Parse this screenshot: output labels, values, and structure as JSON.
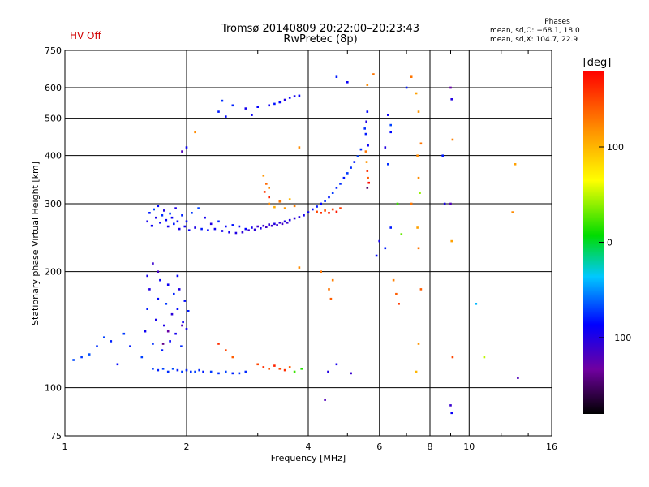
{
  "header": {
    "status": "HV Off",
    "title": "Tromsø 20140809 20:22:00–20:23:43",
    "subtitle": "RwPretec (8p)",
    "stats_title": "Phases",
    "stats_o": "mean, sd,O: −68.1, 18.0",
    "stats_x": "mean, sd,X: 104.7, 22.9"
  },
  "colors": {
    "status": "#d00000",
    "grid": "#000000",
    "background": "#ffffff"
  },
  "chart_data": {
    "type": "scatter",
    "xlabel": "Frequency [MHz]",
    "ylabel": "Stationary phase Virtual Height [km]",
    "x_scale": "log",
    "y_scale": "log",
    "xlim": [
      1,
      16
    ],
    "ylim": [
      75,
      750
    ],
    "x_ticks": [
      1,
      2,
      4,
      6,
      8,
      10,
      16
    ],
    "y_ticks": [
      75,
      100,
      200,
      300,
      400,
      500,
      600,
      750
    ],
    "grid": true,
    "colorbar": {
      "label": "[deg]",
      "ticks": [
        100,
        0,
        -100
      ],
      "range": [
        -180,
        180
      ],
      "colormap": "rainbow"
    },
    "points": [
      [
        1.6,
        270,
        -95
      ],
      [
        1.62,
        284,
        -80
      ],
      [
        1.64,
        263,
        -92
      ],
      [
        1.66,
        290,
        -70
      ],
      [
        1.68,
        276,
        -98
      ],
      [
        1.7,
        296,
        -85
      ],
      [
        1.72,
        268,
        -90
      ],
      [
        1.74,
        280,
        -75
      ],
      [
        1.76,
        288,
        -100
      ],
      [
        1.78,
        272,
        -88
      ],
      [
        1.8,
        262,
        -95
      ],
      [
        1.82,
        283,
        -70
      ],
      [
        1.84,
        276,
        -92
      ],
      [
        1.86,
        266,
        -80
      ],
      [
        1.88,
        292,
        -99
      ],
      [
        1.9,
        270,
        -86
      ],
      [
        1.92,
        258,
        -96
      ],
      [
        1.95,
        280,
        -78
      ],
      [
        1.98,
        262,
        -92
      ],
      [
        2.0,
        270,
        -85
      ],
      [
        2.03,
        256,
        -90
      ],
      [
        2.06,
        284,
        -72
      ],
      [
        2.1,
        260,
        -98
      ],
      [
        2.14,
        292,
        -70
      ],
      [
        2.18,
        258,
        -80
      ],
      [
        2.22,
        276,
        -95
      ],
      [
        2.26,
        256,
        -86
      ],
      [
        2.3,
        266,
        -100
      ],
      [
        2.35,
        258,
        -92
      ],
      [
        2.4,
        270,
        -78
      ],
      [
        2.45,
        255,
        -95
      ],
      [
        2.5,
        262,
        -88
      ],
      [
        2.55,
        253,
        -96
      ],
      [
        2.6,
        264,
        -82
      ],
      [
        2.65,
        252,
        -100
      ],
      [
        2.7,
        262,
        -90
      ],
      [
        2.75,
        253,
        -105
      ],
      [
        2.8,
        258,
        -86
      ],
      [
        2.85,
        256,
        -110
      ],
      [
        2.9,
        260,
        -95
      ],
      [
        2.95,
        257,
        -104
      ],
      [
        3.0,
        262,
        -112
      ],
      [
        3.05,
        259,
        -98
      ],
      [
        3.1,
        263,
        -108
      ],
      [
        3.15,
        261,
        -115
      ],
      [
        3.2,
        265,
        -104
      ],
      [
        3.25,
        263,
        -112
      ],
      [
        3.3,
        266,
        -100
      ],
      [
        3.35,
        264,
        -110
      ],
      [
        3.4,
        268,
        -106
      ],
      [
        3.45,
        266,
        -114
      ],
      [
        3.5,
        270,
        -100
      ],
      [
        3.55,
        268,
        -110
      ],
      [
        3.6,
        272,
        -98
      ],
      [
        3.7,
        275,
        -106
      ],
      [
        3.8,
        277,
        -100
      ],
      [
        3.9,
        280,
        -95
      ],
      [
        4.0,
        285,
        -90
      ],
      [
        4.1,
        290,
        -86
      ],
      [
        4.2,
        295,
        -80
      ],
      [
        4.3,
        300,
        -85
      ],
      [
        4.4,
        305,
        -76
      ],
      [
        4.5,
        312,
        -80
      ],
      [
        4.6,
        320,
        -72
      ],
      [
        4.7,
        330,
        -78
      ],
      [
        4.8,
        338,
        -75
      ],
      [
        4.9,
        350,
        -80
      ],
      [
        5.0,
        360,
        -72
      ],
      [
        5.1,
        372,
        -75
      ],
      [
        5.2,
        385,
        -80
      ],
      [
        5.3,
        398,
        -70
      ],
      [
        5.4,
        415,
        -76
      ],
      [
        3.2,
        300,
        120
      ],
      [
        3.3,
        294,
        105
      ],
      [
        3.4,
        304,
        130
      ],
      [
        3.5,
        292,
        115
      ],
      [
        3.6,
        308,
        100
      ],
      [
        3.7,
        296,
        125
      ],
      [
        4.2,
        286,
        150
      ],
      [
        4.3,
        284,
        160
      ],
      [
        4.4,
        288,
        145
      ],
      [
        4.5,
        284,
        165
      ],
      [
        4.6,
        290,
        150
      ],
      [
        4.7,
        286,
        170
      ],
      [
        4.8,
        292,
        155
      ],
      [
        3.1,
        355,
        115
      ],
      [
        3.15,
        338,
        135
      ],
      [
        3.2,
        330,
        120
      ],
      [
        3.12,
        322,
        155
      ],
      [
        3.2,
        312,
        165
      ],
      [
        5.55,
        410,
        130
      ],
      [
        5.58,
        385,
        115
      ],
      [
        5.6,
        365,
        160
      ],
      [
        5.62,
        350,
        140
      ],
      [
        5.65,
        340,
        175
      ],
      [
        5.6,
        330,
        -150
      ],
      [
        5.62,
        425,
        -90
      ],
      [
        5.55,
        455,
        -80
      ],
      [
        5.57,
        490,
        -100
      ],
      [
        5.6,
        520,
        -85
      ],
      [
        5.52,
        470,
        -75
      ],
      [
        2.4,
        520,
        -80
      ],
      [
        2.5,
        505,
        -85
      ],
      [
        2.6,
        540,
        -78
      ],
      [
        2.8,
        530,
        -95
      ],
      [
        3.0,
        535,
        -88
      ],
      [
        3.2,
        540,
        -92
      ],
      [
        3.4,
        550,
        -86
      ],
      [
        3.5,
        558,
        -100
      ],
      [
        3.6,
        565,
        -90
      ],
      [
        3.7,
        570,
        -95
      ],
      [
        3.8,
        572,
        -88
      ],
      [
        2.45,
        555,
        -75
      ],
      [
        2.9,
        510,
        -90
      ],
      [
        3.3,
        545,
        -82
      ],
      [
        1.55,
        120,
        -70
      ],
      [
        1.58,
        140,
        -92
      ],
      [
        1.6,
        160,
        -80
      ],
      [
        1.62,
        180,
        -100
      ],
      [
        1.65,
        130,
        -75
      ],
      [
        1.68,
        150,
        -95
      ],
      [
        1.7,
        170,
        -85
      ],
      [
        1.72,
        190,
        -90
      ],
      [
        1.74,
        125,
        -80
      ],
      [
        1.76,
        145,
        -98
      ],
      [
        1.78,
        165,
        -72
      ],
      [
        1.8,
        185,
        -92
      ],
      [
        1.82,
        132,
        -88
      ],
      [
        1.84,
        155,
        -104
      ],
      [
        1.86,
        175,
        -78
      ],
      [
        1.88,
        138,
        -95
      ],
      [
        1.9,
        160,
        -85
      ],
      [
        1.92,
        180,
        -100
      ],
      [
        1.94,
        128,
        -76
      ],
      [
        1.96,
        148,
        -92
      ],
      [
        1.98,
        168,
        -84
      ],
      [
        2.0,
        142,
        -96
      ],
      [
        2.02,
        158,
        -80
      ],
      [
        1.65,
        210,
        -110
      ],
      [
        1.7,
        200,
        -115
      ],
      [
        1.75,
        130,
        -140
      ],
      [
        1.8,
        140,
        -130
      ],
      [
        1.6,
        195,
        -95
      ],
      [
        1.9,
        195,
        -88
      ],
      [
        1.95,
        145,
        -120
      ],
      [
        1.05,
        118,
        -68
      ],
      [
        1.1,
        120,
        -72
      ],
      [
        1.15,
        122,
        -66
      ],
      [
        1.2,
        128,
        -75
      ],
      [
        1.25,
        135,
        -70
      ],
      [
        1.3,
        132,
        -78
      ],
      [
        1.4,
        138,
        -72
      ],
      [
        1.45,
        128,
        -80
      ],
      [
        1.35,
        115,
        -85
      ],
      [
        1.65,
        112,
        -72
      ],
      [
        1.7,
        111,
        -78
      ],
      [
        1.75,
        112,
        -70
      ],
      [
        1.8,
        110,
        -75
      ],
      [
        1.85,
        112,
        -68
      ],
      [
        1.9,
        111,
        -80
      ],
      [
        1.95,
        110,
        -72
      ],
      [
        2.0,
        111,
        -78
      ],
      [
        2.05,
        110,
        -74
      ],
      [
        2.1,
        110,
        -70
      ],
      [
        2.15,
        111,
        -76
      ],
      [
        2.2,
        110,
        -80
      ],
      [
        2.3,
        110,
        -72
      ],
      [
        2.4,
        109,
        -75
      ],
      [
        2.5,
        110,
        -70
      ],
      [
        2.6,
        109,
        -78
      ],
      [
        2.7,
        109,
        -74
      ],
      [
        2.8,
        110,
        -76
      ],
      [
        2.4,
        130,
        160
      ],
      [
        2.5,
        125,
        150
      ],
      [
        2.6,
        120,
        140
      ],
      [
        3.0,
        115,
        150
      ],
      [
        3.1,
        113,
        160
      ],
      [
        3.2,
        112,
        145
      ],
      [
        3.3,
        114,
        165
      ],
      [
        3.4,
        112,
        150
      ],
      [
        3.5,
        111,
        160
      ],
      [
        3.6,
        113,
        140
      ],
      [
        3.7,
        110,
        20
      ],
      [
        3.85,
        112,
        15
      ],
      [
        4.5,
        180,
        130
      ],
      [
        4.55,
        170,
        140
      ],
      [
        4.6,
        190,
        125
      ],
      [
        4.48,
        110,
        -100
      ],
      [
        4.7,
        115,
        -95
      ],
      [
        5.1,
        109,
        -110
      ],
      [
        4.4,
        93,
        -120
      ],
      [
        4.3,
        200,
        130
      ],
      [
        6.5,
        190,
        125
      ],
      [
        6.6,
        175,
        140
      ],
      [
        6.7,
        165,
        155
      ],
      [
        6.8,
        250,
        30
      ],
      [
        6.65,
        300,
        20
      ],
      [
        7.0,
        600,
        -80
      ],
      [
        7.2,
        640,
        130
      ],
      [
        7.4,
        580,
        110
      ],
      [
        7.5,
        520,
        115
      ],
      [
        7.6,
        430,
        130
      ],
      [
        7.5,
        350,
        120
      ],
      [
        7.45,
        260,
        110
      ],
      [
        7.5,
        230,
        130
      ],
      [
        7.6,
        180,
        140
      ],
      [
        7.5,
        130,
        115
      ],
      [
        7.4,
        110,
        100
      ],
      [
        7.55,
        320,
        40
      ],
      [
        7.45,
        400,
        120
      ],
      [
        7.2,
        300,
        130
      ],
      [
        9.0,
        600,
        -130
      ],
      [
        9.05,
        560,
        -100
      ],
      [
        9.1,
        440,
        125
      ],
      [
        9.0,
        300,
        -120
      ],
      [
        9.05,
        240,
        110
      ],
      [
        9.1,
        120,
        150
      ],
      [
        9.0,
        90,
        -110
      ],
      [
        9.05,
        86,
        -90
      ],
      [
        8.6,
        400,
        -80
      ],
      [
        8.7,
        300,
        -95
      ],
      [
        6.3,
        510,
        -90
      ],
      [
        6.4,
        480,
        -70
      ],
      [
        6.4,
        460,
        -85
      ],
      [
        6.2,
        420,
        -100
      ],
      [
        6.3,
        380,
        -75
      ],
      [
        6.4,
        260,
        -80
      ],
      [
        6.0,
        240,
        -95
      ],
      [
        5.9,
        220,
        -85
      ],
      [
        5.0,
        620,
        -90
      ],
      [
        4.7,
        640,
        -80
      ],
      [
        5.8,
        650,
        130
      ],
      [
        5.6,
        610,
        120
      ],
      [
        6.2,
        230,
        -80
      ],
      [
        10.4,
        165,
        -40
      ],
      [
        10.9,
        120,
        50
      ],
      [
        12.8,
        285,
        120
      ],
      [
        13.0,
        380,
        110
      ],
      [
        13.2,
        106,
        -120
      ],
      [
        2.1,
        460,
        120
      ],
      [
        2.0,
        420,
        -90
      ],
      [
        1.95,
        410,
        -120
      ],
      [
        3.8,
        420,
        120
      ],
      [
        3.8,
        205,
        120
      ]
    ]
  }
}
